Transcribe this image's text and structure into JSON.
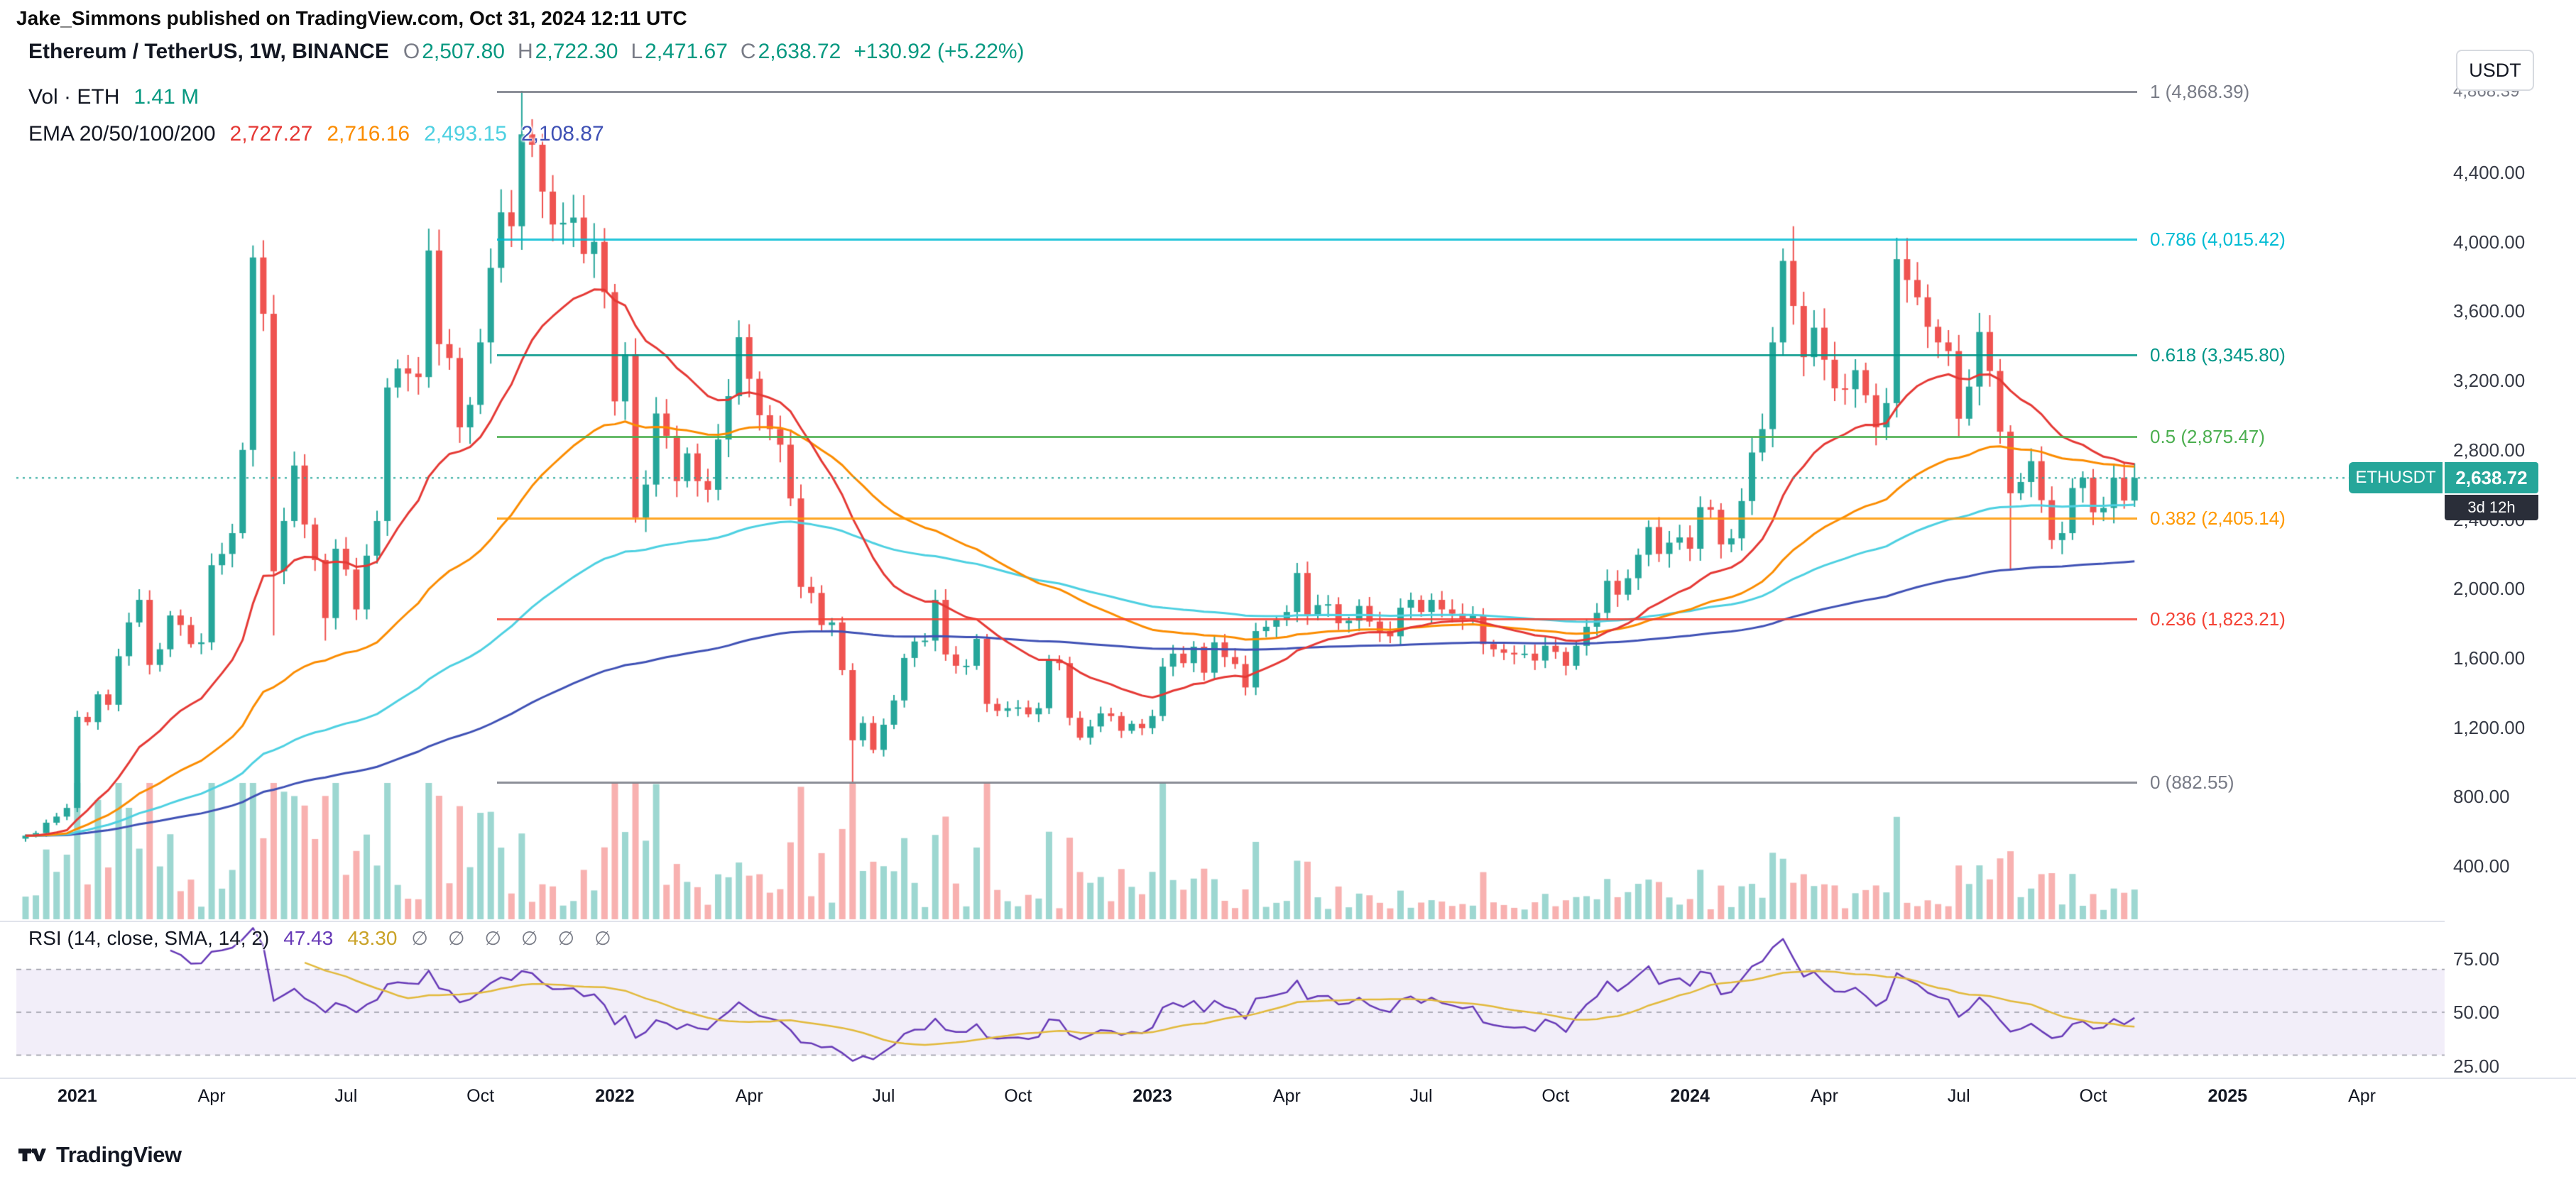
{
  "header": {
    "published_line": "Jake_Simmons published on TradingView.com, Oct 31, 2024 12:11 UTC"
  },
  "toolbar": {
    "currency_button": "USDT"
  },
  "legend": {
    "o_label": "O",
    "o_value": "2,507.80",
    "h_label": "H",
    "h_value": "2,722.30",
    "l_label": "L",
    "l_value": "2,471.67",
    "c_label": "C",
    "c_value": "2,638.72",
    "change": "+130.92 (+5.22%)"
  },
  "volume_legend": {
    "label": "Vol · ETH",
    "value": "1.41 M"
  },
  "rsi_legend": {
    "empties": [
      "∅",
      "∅",
      "∅",
      "∅",
      "∅",
      "∅"
    ]
  },
  "last_price": {
    "symbol": "ETHUSDT",
    "price_label": "2,638.72",
    "value": 2638.72,
    "countdown": "3d 12h"
  },
  "footer": {
    "brand": "TradingView"
  },
  "chart_data": {
    "type": "candlestick",
    "title": "Ethereum / TetherUS, 1W, BINANCE",
    "symbol": "ETHUSDT",
    "exchange": "BINANCE",
    "interval": "1W",
    "start_week": "2020-11-30",
    "last_candle": {
      "open": 2507.8,
      "high": 2722.3,
      "low": 2471.67,
      "close": 2638.72,
      "change": 130.92,
      "change_pct": 5.22
    },
    "closes": [
      575,
      590,
      650,
      685,
      735,
      1260,
      1230,
      1390,
      1330,
      1610,
      1805,
      1935,
      1560,
      1650,
      1845,
      1790,
      1680,
      1690,
      2135,
      2200,
      2320,
      2800,
      3910,
      3585,
      2100,
      2390,
      2710,
      2370,
      2165,
      1830,
      2230,
      2110,
      1880,
      2190,
      2390,
      3160,
      3270,
      3240,
      3220,
      3950,
      3410,
      3330,
      2930,
      3060,
      3420,
      3850,
      4170,
      4090,
      4620,
      4560,
      4290,
      4100,
      4110,
      4140,
      3930,
      4000,
      3710,
      3080,
      3350,
      2410,
      2600,
      3010,
      2880,
      2620,
      2780,
      2620,
      2570,
      2860,
      3110,
      3450,
      3210,
      3000,
      2920,
      2830,
      2520,
      2010,
      1975,
      1790,
      1805,
      1530,
      1125,
      1225,
      1070,
      1215,
      1355,
      1600,
      1695,
      1700,
      1935,
      1620,
      1555,
      1555,
      1710,
      1335,
      1295,
      1310,
      1315,
      1275,
      1310,
      1590,
      1570,
      1255,
      1140,
      1205,
      1280,
      1265,
      1180,
      1220,
      1195,
      1265,
      1550,
      1625,
      1570,
      1665,
      1515,
      1690,
      1605,
      1565,
      1430,
      1755,
      1780,
      1820,
      1865,
      2090,
      1850,
      1905,
      1910,
      1800,
      1815,
      1900,
      1810,
      1755,
      1725,
      1890,
      1935,
      1865,
      1935,
      1880,
      1855,
      1825,
      1845,
      1680,
      1650,
      1630,
      1620,
      1625,
      1585,
      1670,
      1635,
      1555,
      1670,
      1780,
      1860,
      2045,
      1965,
      2060,
      2195,
      2355,
      2200,
      2265,
      2295,
      2230,
      2470,
      2455,
      2255,
      2290,
      2505,
      2785,
      2920,
      3420,
      3890,
      3630,
      3335,
      3505,
      3320,
      3155,
      3150,
      3260,
      3115,
      2930,
      3070,
      3900,
      3780,
      3680,
      3510,
      3420,
      3370,
      2980,
      3165,
      3480,
      3255,
      2905,
      2550,
      2615,
      2735,
      2510,
      2280,
      2320,
      2580,
      2640,
      2440,
      2465,
      2640,
      2507.8,
      2638.72
    ],
    "wick_overrides": {
      "24": [
        null,
        1730
      ],
      "29": [
        null,
        1700
      ],
      "48": [
        4868.39,
        null
      ],
      "80": [
        null,
        882.55
      ],
      "171": [
        4090,
        null
      ],
      "192": [
        null,
        2115
      ],
      "204": [
        2722.3,
        2471.67
      ]
    },
    "volume_display": "1.41 M",
    "price_axis": {
      "ticks": [
        {
          "label": "4,400.00",
          "value": 4400
        },
        {
          "label": "4,000.00",
          "value": 4000
        },
        {
          "label": "3,600.00",
          "value": 3600
        },
        {
          "label": "3,200.00",
          "value": 3200
        },
        {
          "label": "2,800.00",
          "value": 2800
        },
        {
          "label": "2,400.00",
          "value": 2400
        },
        {
          "label": "2,000.00",
          "value": 2000
        },
        {
          "label": "1,600.00",
          "value": 1600
        },
        {
          "label": "1,200.00",
          "value": 1200
        },
        {
          "label": "800.00",
          "value": 800
        },
        {
          "label": "400.00",
          "value": 400
        }
      ],
      "fib_level_label": {
        "text": "4,868.39",
        "value": 4868.39
      }
    },
    "rsi_axis": {
      "ticks": [
        {
          "label": "75.00",
          "value": 75
        },
        {
          "label": "50.00",
          "value": 50
        },
        {
          "label": "25.00",
          "value": 25
        }
      ]
    },
    "time_axis": [
      {
        "label": "2021",
        "week": 5,
        "bold": true
      },
      {
        "label": "Apr",
        "week": 18,
        "bold": false
      },
      {
        "label": "Jul",
        "week": 31,
        "bold": false
      },
      {
        "label": "Oct",
        "week": 44,
        "bold": false
      },
      {
        "label": "2022",
        "week": 57,
        "bold": true
      },
      {
        "label": "Apr",
        "week": 70,
        "bold": false
      },
      {
        "label": "Jul",
        "week": 83,
        "bold": false
      },
      {
        "label": "Oct",
        "week": 96,
        "bold": false
      },
      {
        "label": "2023",
        "week": 109,
        "bold": true
      },
      {
        "label": "Apr",
        "week": 122,
        "bold": false
      },
      {
        "label": "Jul",
        "week": 135,
        "bold": false
      },
      {
        "label": "Oct",
        "week": 148,
        "bold": false
      },
      {
        "label": "2024",
        "week": 161,
        "bold": true
      },
      {
        "label": "Apr",
        "week": 174,
        "bold": false
      },
      {
        "label": "Jul",
        "week": 187,
        "bold": false
      },
      {
        "label": "Oct",
        "week": 200,
        "bold": false
      },
      {
        "label": "2025",
        "week": 213,
        "bold": true
      },
      {
        "label": "Apr",
        "week": 226,
        "bold": false
      }
    ],
    "fib_levels": [
      {
        "label": "1 (4,868.39)",
        "value": 4868.39,
        "color": "#787b86"
      },
      {
        "label": "0.786 (4,015.42)",
        "value": 4015.42,
        "color": "#00bcd4"
      },
      {
        "label": "0.618 (3,345.80)",
        "value": 3345.8,
        "color": "#009688"
      },
      {
        "label": "0.5 (2,875.47)",
        "value": 2875.47,
        "color": "#4caf50"
      },
      {
        "label": "0.382 (2,405.14)",
        "value": 2405.14,
        "color": "#ff9800"
      },
      {
        "label": "0.236 (1,823.21)",
        "value": 1823.21,
        "color": "#f44336"
      },
      {
        "label": "0 (882.55)",
        "value": 882.55,
        "color": "#787b86"
      }
    ],
    "indicators": {
      "ema": {
        "label": "EMA 20/50/100/200",
        "periods": [
          20,
          50,
          100,
          200
        ],
        "display": [
          {
            "text": "2,727.27",
            "color": "#e53935"
          },
          {
            "text": "2,716.16",
            "color": "#fb8c00"
          },
          {
            "text": "2,493.15",
            "color": "#4dd0e1"
          },
          {
            "text": "2,108.87",
            "color": "#3f51b5"
          }
        ]
      },
      "rsi": {
        "label": "RSI (14, close, SMA, 14, 2)",
        "length": 14,
        "smoothing": 14,
        "value": "47.43",
        "signal": "43.30",
        "band": [
          30,
          70
        ],
        "dashed_levels": [
          70,
          50,
          30
        ]
      }
    },
    "colors": {
      "candle_up": "#26a69a",
      "candle_down": "#ef5350",
      "vol_up": "rgba(38,166,154,0.45)",
      "vol_down": "rgba(239,83,80,0.45)",
      "ema20": "#e53935",
      "ema50": "#fb8c00",
      "ema100": "#4dd0e1",
      "ema200": "#3f51b5",
      "rsi_line": "#673ab7",
      "rsi_signal": "#e2b93b",
      "rsi_band": "#7e57c2",
      "last_price": "#26a69a",
      "up_text": "#089981",
      "axis_text": "#363a45",
      "grid": "#e0e3eb"
    }
  }
}
